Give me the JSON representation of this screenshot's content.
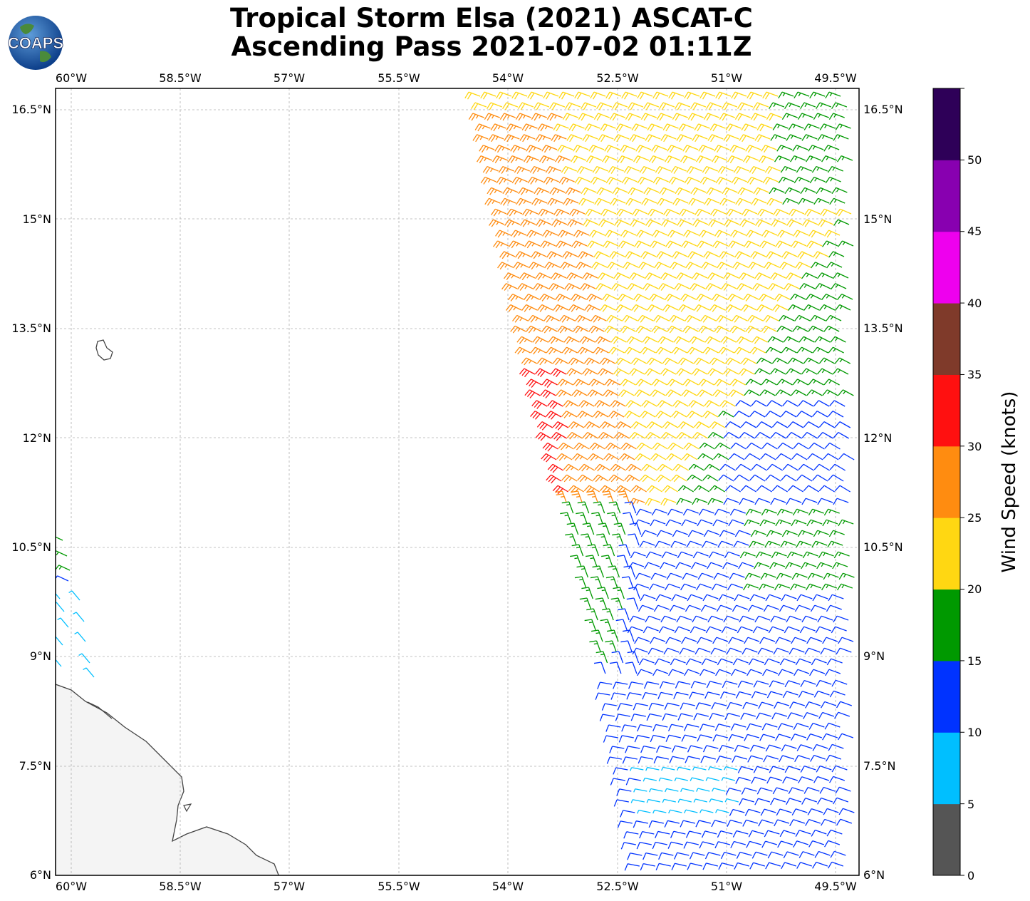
{
  "title": {
    "line1": "Tropical Storm Elsa (2021) ASCAT-C",
    "line2": "Ascending Pass 2021-07-02 01:11Z"
  },
  "logo": {
    "text": "COAPS"
  },
  "axes": {
    "lon_ticks": [
      "60°W",
      "58.5°W",
      "57°W",
      "55.5°W",
      "54°W",
      "52.5°W",
      "51°W",
      "49.5°W"
    ],
    "lat_ticks": [
      "16.5°N",
      "15°N",
      "13.5°N",
      "12°N",
      "10.5°N",
      "9°N",
      "7.5°N",
      "6°N"
    ]
  },
  "colorbar": {
    "label": "Wind Speed (knots)",
    "ticks": [
      "0",
      "5",
      "10",
      "15",
      "20",
      "25",
      "30",
      "35",
      "40",
      "45",
      "50"
    ],
    "colors": [
      "#555555",
      "#00bfff",
      "#0033ff",
      "#009900",
      "#ffd712",
      "#ff8c10",
      "#ff1010",
      "#7f3a2a",
      "#ee00ee",
      "#8800b0",
      "#2e0058"
    ]
  },
  "colors": {
    "grid": "#b0b0b0",
    "coast": "#444444",
    "land": "#f4f4f4"
  }
}
